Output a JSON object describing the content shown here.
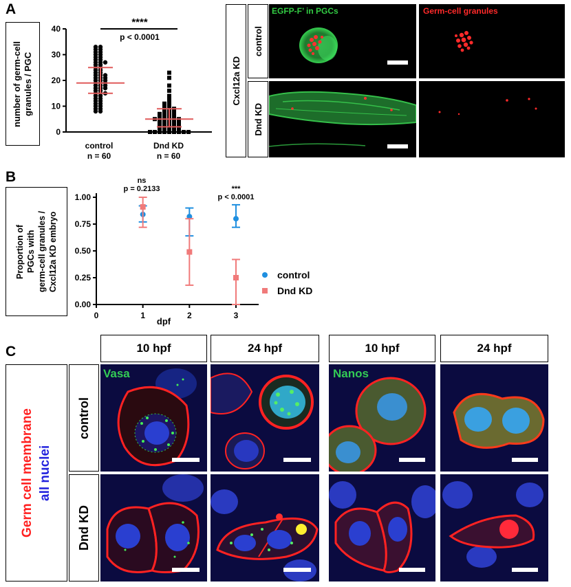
{
  "panels": {
    "a": {
      "letter": "A",
      "ylabel_line1": "number of germ-cell",
      "ylabel_line2": "granules / PGC",
      "significance": "****",
      "pvalue": "p < 0.0001",
      "group1_name": "control",
      "group1_n": "n = 60",
      "group2_name": "Dnd KD",
      "group2_n": "n = 60",
      "side_label": "Cxcl12a KD",
      "row_control": "control",
      "row_dnd": "Dnd KD",
      "col_egfp": "EGFP-F’ in PGCs",
      "col_granules": "Germ-cell granules"
    },
    "b": {
      "letter": "B",
      "ylabel_line1": "Proportion of",
      "ylabel_line2": "PGCs with",
      "ylabel_line3": "germ-cell granules /",
      "ylabel_line4": "Cxcl12a KD embryo",
      "xlabel": "dpf",
      "ann1_sig": "ns",
      "ann1_p": "p = 0.2133",
      "ann3_sig": "***",
      "ann3_p": "p < 0.0001",
      "legend_control": "control",
      "legend_dnd": "Dnd KD"
    },
    "c": {
      "letter": "C",
      "col1": "10 hpf",
      "col2": "24 hpf",
      "col3": "10 hpf",
      "col4": "24 hpf",
      "side_membrane": "Germ cell membrane",
      "side_nuclei": "all nuclei",
      "row_control": "control",
      "row_dnd": "Dnd KD",
      "label_vasa": "Vasa",
      "label_nanos": "Nanos"
    }
  },
  "colors": {
    "control": "#1f8fe0",
    "dnd": "#f07a7a",
    "median": "#e05a5a",
    "membrane": "#ff2020",
    "nuclei": "#2222dd",
    "gfp": "#22aa44"
  },
  "chart_data": [
    {
      "type": "scatter",
      "title": "",
      "xlabel": "",
      "ylabel": "number of germ-cell granules / PGC",
      "ylim": [
        0,
        40
      ],
      "yticks": [
        0,
        10,
        20,
        30,
        40
      ],
      "categories": [
        "control",
        "Dnd KD"
      ],
      "series": [
        {
          "name": "control",
          "values": [
            33,
            33,
            32,
            32,
            31,
            31,
            30,
            30,
            29,
            29,
            28,
            28,
            27,
            27,
            27,
            26,
            26,
            25,
            25,
            24,
            24,
            23,
            23,
            22,
            22,
            22,
            21,
            21,
            21,
            20,
            20,
            20,
            19,
            19,
            19,
            18,
            18,
            18,
            17,
            17,
            17,
            16,
            16,
            15,
            15,
            15,
            14,
            14,
            13,
            13,
            12,
            12,
            11,
            11,
            10,
            10,
            9,
            9,
            8,
            8
          ],
          "median": 19,
          "iqr": [
            15,
            25
          ]
        },
        {
          "name": "Dnd KD",
          "values": [
            23,
            21,
            18,
            16,
            14,
            13,
            12,
            11,
            11,
            10,
            10,
            9,
            9,
            9,
            8,
            8,
            8,
            7,
            7,
            7,
            7,
            6,
            6,
            6,
            6,
            5,
            5,
            5,
            5,
            5,
            5,
            4,
            4,
            4,
            4,
            4,
            3,
            3,
            3,
            3,
            3,
            2,
            2,
            2,
            2,
            2,
            1,
            1,
            1,
            1,
            1,
            0,
            0,
            0,
            0,
            0,
            0,
            0,
            0,
            0
          ],
          "median": 5,
          "iqr": [
            2,
            9
          ]
        }
      ]
    },
    {
      "type": "scatter",
      "title": "",
      "xlabel": "dpf",
      "ylabel": "Proportion of PGCs with germ-cell granules / Cxcl12a KD embryo",
      "xlim": [
        0,
        3
      ],
      "xticks": [
        0,
        1,
        2,
        3
      ],
      "ylim": [
        0,
        1
      ],
      "yticks": [
        0.0,
        0.25,
        0.5,
        0.75,
        1.0
      ],
      "series": [
        {
          "name": "control",
          "x": [
            1,
            2,
            3
          ],
          "y": [
            0.84,
            0.82,
            0.8
          ],
          "err_low": [
            0.77,
            0.64,
            0.72
          ],
          "err_high": [
            0.92,
            0.9,
            0.93
          ]
        },
        {
          "name": "Dnd KD",
          "x": [
            1,
            2,
            3
          ],
          "y": [
            0.91,
            0.49,
            0.25
          ],
          "err_low": [
            0.72,
            0.18,
            0.0
          ],
          "err_high": [
            1.0,
            0.8,
            0.42
          ]
        }
      ],
      "legend": "right"
    }
  ]
}
